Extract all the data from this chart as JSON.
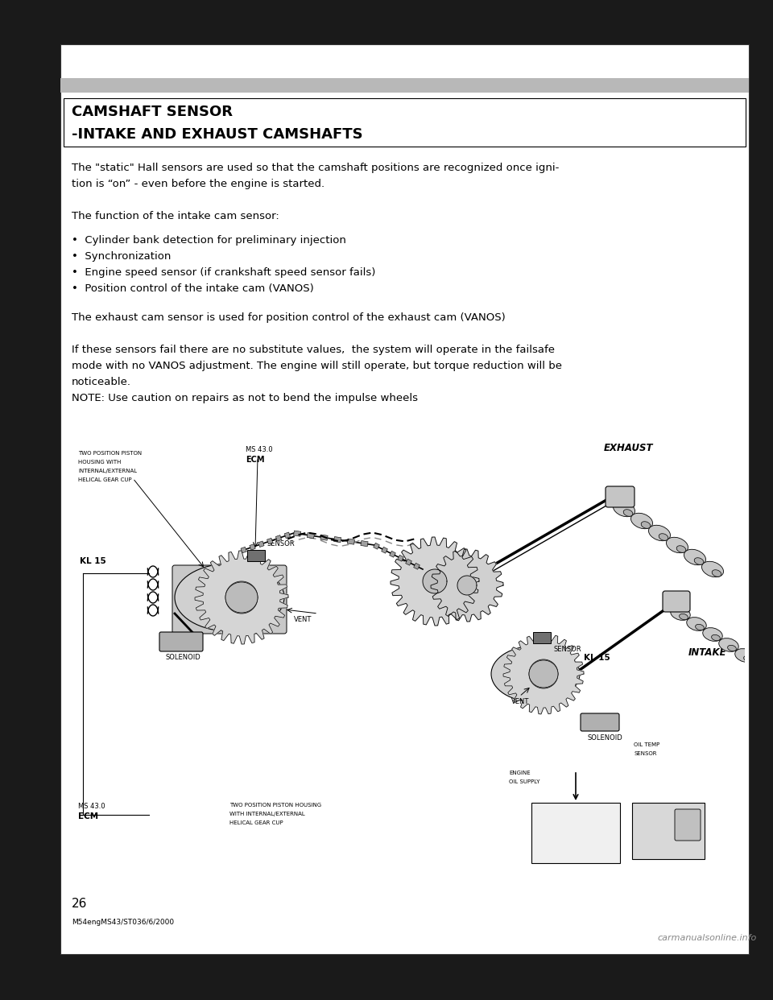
{
  "bg_color": "#1a1a1a",
  "page_bg": "#ffffff",
  "header_bar_color": "#b0b0b0",
  "title_line1": "CAMSHAFT SENSOR",
  "title_line2": "-INTAKE AND EXHAUST CAMSHAFTS",
  "body_font": "DejaVu Sans",
  "para1_line1": "The \"static\" Hall sensors are used so that the camshaft positions are recognized once igni-",
  "para1_line2": "tion is “on” - even before the engine is started.",
  "para2": "The function of the intake cam sensor:",
  "bullets": [
    "•  Cylinder bank detection for preliminary injection",
    "•  Synchronization",
    "•  Engine speed sensor (if crankshaft speed sensor fails)",
    "•  Position control of the intake cam (VANOS)"
  ],
  "para3": "The exhaust cam sensor is used for position control of the exhaust cam (VANOS)",
  "para4_line1": "If these sensors fail there are no substitute values,  the system will operate in the failsafe",
  "para4_line2": "mode with no VANOS adjustment. The engine will still operate, but torque reduction will be",
  "para4_line3": "noticeable.",
  "para4_line4": "NOTE: Use caution on repairs as not to bend the impulse wheels",
  "page_num": "26",
  "footer_text": "M54engMS43/ST036/6/2000",
  "watermark": "carmanualsonline.info"
}
